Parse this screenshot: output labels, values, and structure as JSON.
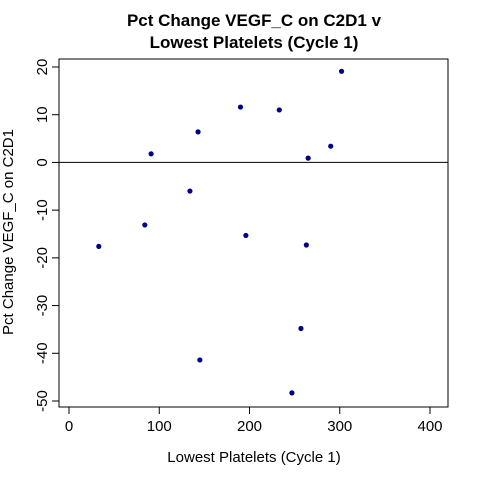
{
  "chart_data": {
    "type": "scatter",
    "title_lines": [
      "Pct Change VEGF_C on C2D1 v",
      "Lowest Platelets (Cycle 1)"
    ],
    "xlabel": "Lowest Platelets (Cycle 1)",
    "ylabel": "Pct Change VEGF_C on C2D1",
    "xlim": [
      0,
      400
    ],
    "ylim": [
      -50,
      20
    ],
    "x_ticks": [
      0,
      100,
      200,
      300,
      400
    ],
    "y_ticks": [
      -50,
      -40,
      -30,
      -20,
      -10,
      0,
      10,
      20
    ],
    "x_tick_labels": [
      "0",
      "100",
      "200",
      "300",
      "400"
    ],
    "y_tick_labels": [
      "-50",
      "-40",
      "-30",
      "-20",
      "-10",
      "0",
      "10",
      "20"
    ],
    "reference_line_y": 0,
    "point_color": "#00008B",
    "points": [
      {
        "x": 33,
        "y": -17.6
      },
      {
        "x": 84,
        "y": -13.1
      },
      {
        "x": 91,
        "y": 1.8
      },
      {
        "x": 134,
        "y": -6.0
      },
      {
        "x": 143,
        "y": 6.4
      },
      {
        "x": 145,
        "y": -41.4
      },
      {
        "x": 190,
        "y": 11.6
      },
      {
        "x": 196,
        "y": -15.3
      },
      {
        "x": 233,
        "y": 11.0
      },
      {
        "x": 247,
        "y": -48.3
      },
      {
        "x": 257,
        "y": -34.8
      },
      {
        "x": 263,
        "y": -17.3
      },
      {
        "x": 265,
        "y": 0.9
      },
      {
        "x": 290,
        "y": 3.4
      },
      {
        "x": 302,
        "y": 19.1
      }
    ]
  }
}
